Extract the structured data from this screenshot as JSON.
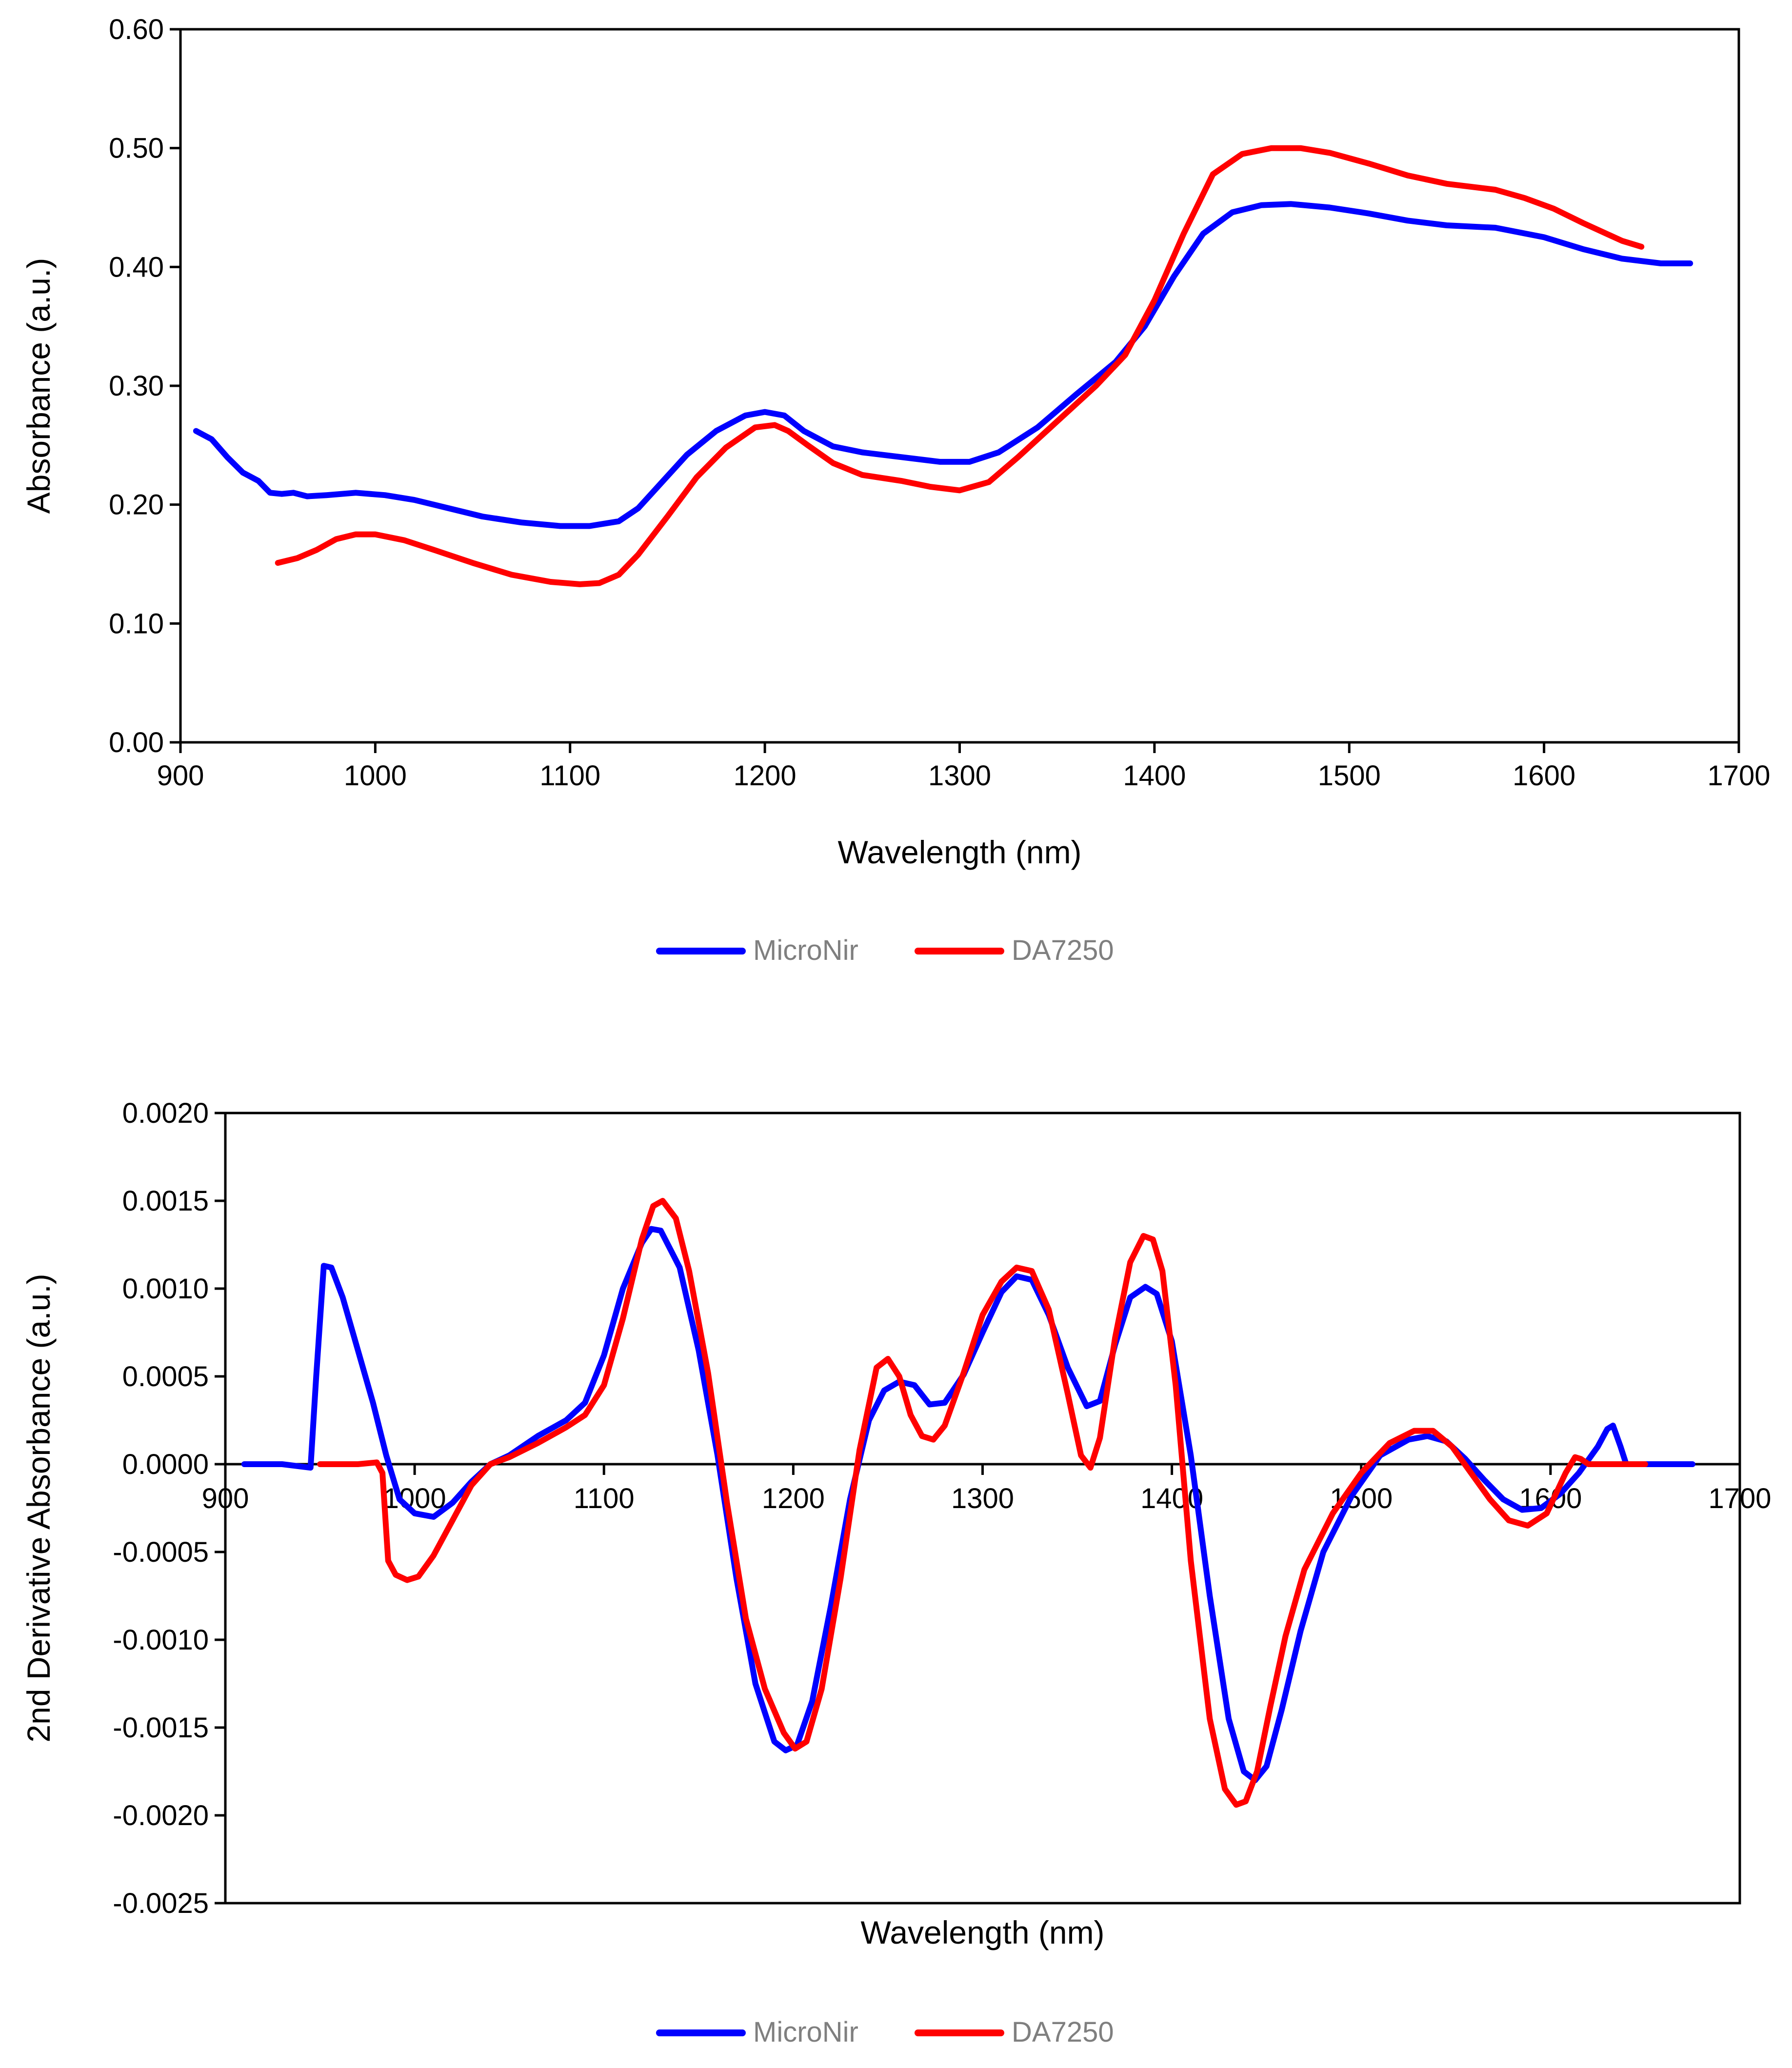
{
  "chart_data": [
    {
      "type": "line",
      "xlabel": "Wavelength (nm)",
      "ylabel": "Absorbance (a.u.)",
      "xlim": [
        900,
        1700
      ],
      "ylim": [
        0,
        0.6
      ],
      "xticks": [
        "900",
        "1000",
        "1100",
        "1200",
        "1300",
        "1400",
        "1500",
        "1600",
        "1700"
      ],
      "yticks": [
        "0.00",
        "0.10",
        "0.20",
        "0.30",
        "0.40",
        "0.50",
        "0.60"
      ],
      "grid": false,
      "legend_position": "bottom",
      "series": [
        {
          "name": "MicroNir",
          "color": "#0000ff",
          "x": [
            908,
            916,
            924,
            932,
            940,
            946,
            952,
            958,
            965,
            975,
            990,
            1005,
            1020,
            1035,
            1055,
            1075,
            1095,
            1110,
            1125,
            1135,
            1145,
            1160,
            1175,
            1190,
            1200,
            1210,
            1220,
            1235,
            1250,
            1270,
            1290,
            1305,
            1320,
            1340,
            1360,
            1380,
            1395,
            1410,
            1425,
            1440,
            1455,
            1470,
            1490,
            1510,
            1530,
            1550,
            1575,
            1600,
            1620,
            1640,
            1660,
            1675
          ],
          "y": [
            0.262,
            0.255,
            0.24,
            0.227,
            0.22,
            0.21,
            0.209,
            0.21,
            0.207,
            0.208,
            0.21,
            0.208,
            0.204,
            0.198,
            0.19,
            0.185,
            0.182,
            0.182,
            0.186,
            0.197,
            0.215,
            0.242,
            0.262,
            0.275,
            0.278,
            0.275,
            0.262,
            0.249,
            0.244,
            0.24,
            0.236,
            0.236,
            0.244,
            0.265,
            0.293,
            0.32,
            0.35,
            0.392,
            0.428,
            0.446,
            0.452,
            0.453,
            0.45,
            0.445,
            0.439,
            0.435,
            0.433,
            0.425,
            0.415,
            0.407,
            0.403,
            0.403
          ]
        },
        {
          "name": "DA7250",
          "color": "#ff0000",
          "x": [
            950,
            960,
            970,
            980,
            990,
            1000,
            1015,
            1030,
            1050,
            1070,
            1090,
            1105,
            1115,
            1125,
            1135,
            1150,
            1165,
            1180,
            1195,
            1205,
            1212,
            1222,
            1235,
            1250,
            1270,
            1285,
            1300,
            1315,
            1330,
            1350,
            1370,
            1385,
            1400,
            1415,
            1430,
            1445,
            1460,
            1475,
            1490,
            1510,
            1530,
            1550,
            1575,
            1590,
            1605,
            1620,
            1640,
            1650
          ],
          "y": [
            0.151,
            0.155,
            0.162,
            0.171,
            0.175,
            0.175,
            0.17,
            0.162,
            0.151,
            0.141,
            0.135,
            0.133,
            0.134,
            0.141,
            0.158,
            0.19,
            0.223,
            0.248,
            0.265,
            0.267,
            0.262,
            0.25,
            0.235,
            0.225,
            0.22,
            0.215,
            0.212,
            0.219,
            0.24,
            0.27,
            0.3,
            0.326,
            0.372,
            0.428,
            0.478,
            0.495,
            0.5,
            0.5,
            0.496,
            0.487,
            0.477,
            0.47,
            0.465,
            0.458,
            0.449,
            0.437,
            0.422,
            0.417
          ]
        }
      ]
    },
    {
      "type": "line",
      "xlabel": "Wavelength (nm)",
      "ylabel": "2nd Derivative Absorbance (a.u.)",
      "xlim": [
        900,
        1700
      ],
      "ylim": [
        -0.0025,
        0.002
      ],
      "xticks": [
        "900",
        "1000",
        "1100",
        "1200",
        "1300",
        "1400",
        "1500",
        "1600",
        "1700"
      ],
      "yticks": [
        "0.0020",
        "0.0015",
        "0.0010",
        "0.0005",
        "0.0000",
        "-0.0005",
        "-0.0010",
        "-0.0015",
        "-0.0020",
        "-0.0025"
      ],
      "grid": false,
      "legend_position": "bottom",
      "series": [
        {
          "name": "MicroNir",
          "color": "#0000ff",
          "x": [
            910,
            930,
            945,
            948,
            952,
            956,
            962,
            970,
            978,
            985,
            992,
            1000,
            1010,
            1020,
            1030,
            1040,
            1050,
            1065,
            1080,
            1090,
            1100,
            1110,
            1120,
            1125,
            1130,
            1140,
            1150,
            1160,
            1170,
            1180,
            1190,
            1196,
            1202,
            1210,
            1220,
            1230,
            1240,
            1248,
            1256,
            1264,
            1272,
            1280,
            1290,
            1300,
            1310,
            1318,
            1326,
            1335,
            1345,
            1355,
            1362,
            1370,
            1378,
            1386,
            1392,
            1400,
            1410,
            1420,
            1430,
            1438,
            1444,
            1450,
            1458,
            1468,
            1480,
            1495,
            1510,
            1525,
            1535,
            1545,
            1555,
            1565,
            1575,
            1585,
            1595,
            1605,
            1615,
            1625,
            1630,
            1633,
            1637,
            1640,
            1660,
            1675
          ],
          "y": [
            0,
            0,
            -2e-05,
            0.0005,
            0.00113,
            0.00112,
            0.00095,
            0.00065,
            0.00035,
            5e-05,
            -0.0002,
            -0.00028,
            -0.0003,
            -0.00022,
            -0.0001,
            0,
            5e-05,
            0.00016,
            0.00025,
            0.00035,
            0.00062,
            0.001,
            0.00126,
            0.00134,
            0.00133,
            0.00112,
            0.00065,
            5e-05,
            -0.00065,
            -0.00125,
            -0.00158,
            -0.00163,
            -0.0016,
            -0.00135,
            -0.0008,
            -0.0002,
            0.00025,
            0.00042,
            0.00047,
            0.00045,
            0.00034,
            0.00035,
            0.00051,
            0.00075,
            0.00098,
            0.00107,
            0.00105,
            0.00085,
            0.00055,
            0.00033,
            0.00036,
            0.00068,
            0.00095,
            0.00101,
            0.00097,
            0.0007,
            5e-05,
            -0.00075,
            -0.00145,
            -0.00175,
            -0.0018,
            -0.00172,
            -0.0014,
            -0.00095,
            -0.0005,
            -0.00018,
            5e-05,
            0.00014,
            0.00016,
            0.00013,
            3e-05,
            -9e-05,
            -0.0002,
            -0.00026,
            -0.00025,
            -0.00017,
            -5e-05,
            0.0001,
            0.0002,
            0.00022,
            0.0001,
            0,
            0,
            0
          ]
        },
        {
          "name": "DA7250",
          "color": "#ff0000",
          "x": [
            950,
            970,
            980,
            983,
            986,
            990,
            996,
            1002,
            1010,
            1020,
            1030,
            1040,
            1050,
            1065,
            1080,
            1090,
            1100,
            1110,
            1120,
            1126,
            1131,
            1138,
            1145,
            1155,
            1165,
            1175,
            1185,
            1195,
            1201,
            1207,
            1215,
            1225,
            1235,
            1244,
            1250,
            1256,
            1262,
            1268,
            1274,
            1280,
            1290,
            1300,
            1310,
            1318,
            1326,
            1335,
            1345,
            1352,
            1357,
            1362,
            1370,
            1378,
            1385,
            1390,
            1395,
            1402,
            1410,
            1420,
            1428,
            1434,
            1439,
            1445,
            1452,
            1460,
            1470,
            1485,
            1500,
            1515,
            1528,
            1538,
            1548,
            1558,
            1568,
            1578,
            1588,
            1598,
            1608,
            1613,
            1616,
            1620,
            1630,
            1650
          ],
          "y": [
            0,
            0,
            1e-05,
            -5e-05,
            -0.00055,
            -0.00063,
            -0.00066,
            -0.00064,
            -0.00052,
            -0.00032,
            -0.00012,
            0,
            4e-05,
            0.00012,
            0.00021,
            0.00028,
            0.00045,
            0.00083,
            0.00128,
            0.00147,
            0.0015,
            0.0014,
            0.0011,
            0.00052,
            -0.00022,
            -0.00088,
            -0.00128,
            -0.00153,
            -0.00162,
            -0.00158,
            -0.00128,
            -0.00065,
            8e-05,
            0.00055,
            0.0006,
            0.0005,
            0.00028,
            0.00016,
            0.00014,
            0.00022,
            0.00052,
            0.00085,
            0.00104,
            0.00112,
            0.0011,
            0.00088,
            0.0004,
            5e-05,
            -2e-05,
            0.00015,
            0.00072,
            0.00115,
            0.0013,
            0.00128,
            0.0011,
            0.00045,
            -0.00055,
            -0.00145,
            -0.00185,
            -0.00194,
            -0.00192,
            -0.00175,
            -0.00138,
            -0.00098,
            -0.0006,
            -0.00028,
            -5e-05,
            0.00012,
            0.00019,
            0.00019,
            0.0001,
            -5e-05,
            -0.0002,
            -0.00032,
            -0.00035,
            -0.00028,
            -5e-05,
            4e-05,
            3e-05,
            0,
            0,
            0
          ]
        }
      ]
    }
  ]
}
